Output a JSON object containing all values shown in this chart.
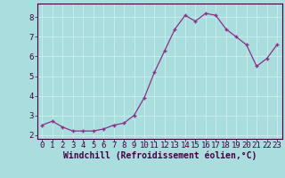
{
  "x": [
    0,
    1,
    2,
    3,
    4,
    5,
    6,
    7,
    8,
    9,
    10,
    11,
    12,
    13,
    14,
    15,
    16,
    17,
    18,
    19,
    20,
    21,
    22,
    23
  ],
  "y": [
    2.5,
    2.7,
    2.4,
    2.2,
    2.2,
    2.2,
    2.3,
    2.5,
    2.6,
    3.0,
    3.9,
    5.2,
    6.3,
    7.4,
    8.1,
    7.8,
    8.2,
    8.1,
    7.4,
    7.0,
    6.6,
    5.5,
    5.9,
    6.6
  ],
  "line_color": "#883388",
  "marker": "+",
  "marker_size": 4,
  "bg_color": "#aadddd",
  "plot_bg_color": "#aadddd",
  "grid_color": "#cceeee",
  "xlabel": "Windchill (Refroidissement éolien,°C)",
  "xlabel_color": "#440044",
  "tick_color": "#440044",
  "axis_color": "#440044",
  "ylim": [
    1.8,
    8.7
  ],
  "xlim": [
    -0.5,
    23.5
  ],
  "yticks": [
    2,
    3,
    4,
    5,
    6,
    7,
    8
  ],
  "xticks": [
    0,
    1,
    2,
    3,
    4,
    5,
    6,
    7,
    8,
    9,
    10,
    11,
    12,
    13,
    14,
    15,
    16,
    17,
    18,
    19,
    20,
    21,
    22,
    23
  ],
  "font_size": 6.5,
  "xlabel_font_size": 7,
  "line_width": 0.9,
  "marker_size_val": 3.5
}
